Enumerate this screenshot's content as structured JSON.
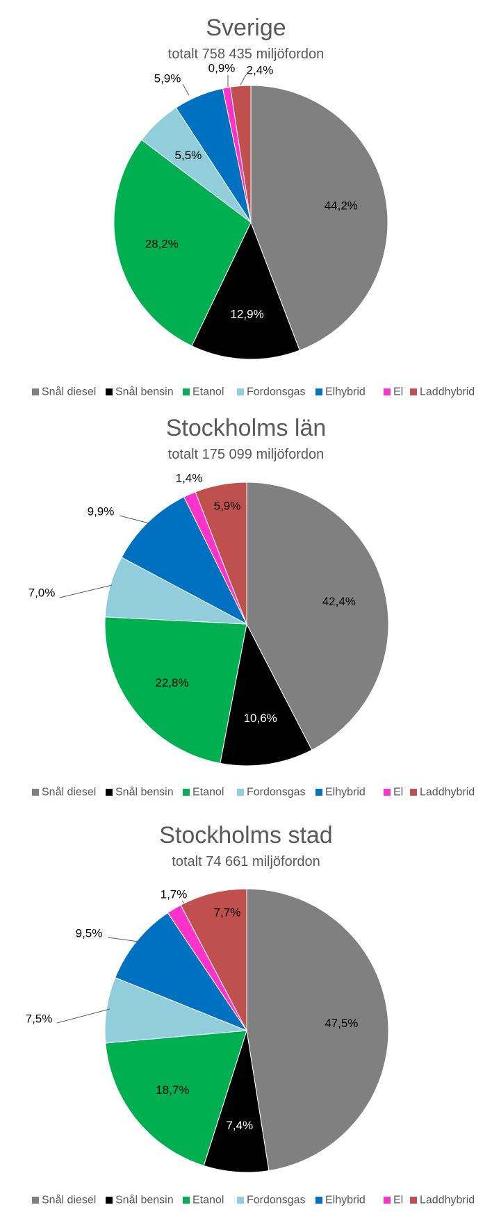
{
  "legend_labels": [
    "Snål diesel",
    "Snål bensin",
    "Etanol",
    "Fordonsgas",
    "Elhybrid",
    "El",
    "Laddhybrid"
  ],
  "colors": {
    "Snål diesel": "#808080",
    "Snål bensin": "#000000",
    "Etanol": "#00b050",
    "Fordonsgas": "#92cddc",
    "Elhybrid": "#0070c0",
    "El": "#ff33cc",
    "Laddhybrid": "#c0504d"
  },
  "chart_data": [
    {
      "type": "pie",
      "title": "Sverige",
      "subtitle": "totalt 758 435 miljöfordon",
      "slices": [
        {
          "name": "Snål diesel",
          "value": 44.2,
          "label": "44,2%"
        },
        {
          "name": "Snål bensin",
          "value": 12.9,
          "label": "12,9%"
        },
        {
          "name": "Etanol",
          "value": 28.2,
          "label": "28,2%"
        },
        {
          "name": "Fordonsgas",
          "value": 5.5,
          "label": "5,5%"
        },
        {
          "name": "Elhybrid",
          "value": 5.9,
          "label": "5,9%"
        },
        {
          "name": "El",
          "value": 0.9,
          "label": "0,9%"
        },
        {
          "name": "Laddhybrid",
          "value": 2.4,
          "label": "2,4%"
        }
      ],
      "legend": "bottom"
    },
    {
      "type": "pie",
      "title": "Stockholms län",
      "subtitle": "totalt 175 099 miljöfordon",
      "slices": [
        {
          "name": "Snål diesel",
          "value": 42.4,
          "label": "42,4%"
        },
        {
          "name": "Snål bensin",
          "value": 10.6,
          "label": "10,6%"
        },
        {
          "name": "Etanol",
          "value": 22.8,
          "label": "22,8%"
        },
        {
          "name": "Fordonsgas",
          "value": 7.0,
          "label": "7,0%"
        },
        {
          "name": "Elhybrid",
          "value": 9.9,
          "label": "9,9%"
        },
        {
          "name": "El",
          "value": 1.4,
          "label": "1,4%"
        },
        {
          "name": "Laddhybrid",
          "value": 5.9,
          "label": "5,9%"
        }
      ],
      "legend": "bottom"
    },
    {
      "type": "pie",
      "title": "Stockholms stad",
      "subtitle": "totalt 74 661 miljöfordon",
      "slices": [
        {
          "name": "Snål diesel",
          "value": 47.5,
          "label": "47,5%"
        },
        {
          "name": "Snål bensin",
          "value": 7.4,
          "label": "7,4%"
        },
        {
          "name": "Etanol",
          "value": 18.7,
          "label": "18,7%"
        },
        {
          "name": "Fordonsgas",
          "value": 7.5,
          "label": "7,5%"
        },
        {
          "name": "Elhybrid",
          "value": 9.5,
          "label": "9,5%"
        },
        {
          "name": "El",
          "value": 1.7,
          "label": "1,7%"
        },
        {
          "name": "Laddhybrid",
          "value": 7.7,
          "label": "7,7%"
        }
      ],
      "legend": "bottom"
    }
  ]
}
